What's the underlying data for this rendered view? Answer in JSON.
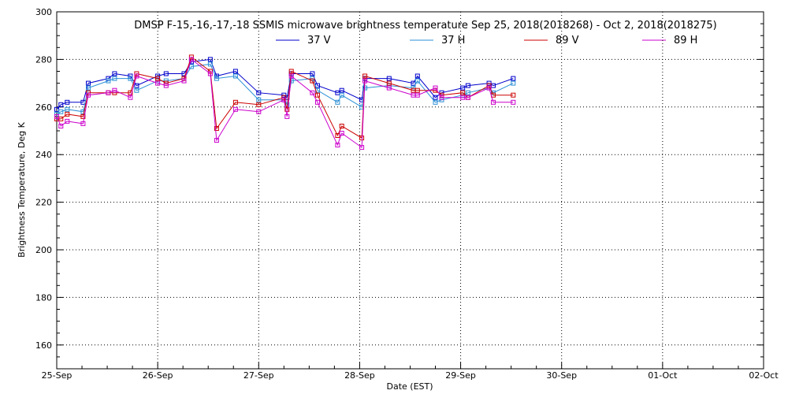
{
  "chart_data": {
    "type": "line",
    "title": "DMSP F-15,-16,-17,-18 SSMIS microwave brightness temperature Sep 25, 2018(2018268) - Oct  2, 2018(2018275)",
    "xlabel": "Date (EST)",
    "ylabel": "Brightness Temperature, Deg K",
    "x_ticks": [
      "25-Sep",
      "26-Sep",
      "27-Sep",
      "28-Sep",
      "29-Sep",
      "30-Sep",
      "01-Oct",
      "02-Oct"
    ],
    "x_tick_dates": [
      "2018-09-25",
      "2018-09-26",
      "2018-09-27",
      "2018-09-28",
      "2018-09-29",
      "2018-09-30",
      "2018-10-01",
      "2018-10-02"
    ],
    "xlim": [
      "2018-09-25 00:00",
      "2018-10-02 00:00"
    ],
    "ylim": [
      150,
      300
    ],
    "y_ticks": [
      160,
      180,
      200,
      220,
      240,
      260,
      280,
      300
    ],
    "grid": true,
    "legend_position": "top-center",
    "x": [
      "2018-09-25 00:00",
      "2018-09-25 01:00",
      "2018-09-25 02:30",
      "2018-09-25 06:15",
      "2018-09-25 07:30",
      "2018-09-25 12:15",
      "2018-09-25 13:45",
      "2018-09-25 17:30",
      "2018-09-25 19:00",
      "2018-09-26 00:00",
      "2018-09-26 02:00",
      "2018-09-26 06:15",
      "2018-09-26 08:00",
      "2018-09-26 12:30",
      "2018-09-26 14:00",
      "2018-09-26 18:30",
      "2018-09-27 00:00",
      "2018-09-27 06:00",
      "2018-09-27 06:45",
      "2018-09-27 07:45",
      "2018-09-27 12:45",
      "2018-09-27 14:00",
      "2018-09-27 18:45",
      "2018-09-27 19:45",
      "2018-09-28 00:30",
      "2018-09-28 01:15",
      "2018-09-28 07:00",
      "2018-09-28 12:45",
      "2018-09-28 13:45",
      "2018-09-28 18:00",
      "2018-09-28 19:30",
      "2018-09-29 00:30",
      "2018-09-29 01:45",
      "2018-09-29 06:45",
      "2018-09-29 07:45",
      "2018-09-29 12:30",
      "2018-09-29 14:15",
      "2018-09-29 19:00"
    ],
    "series": [
      {
        "name": "37 V",
        "color": "#0000cc",
        "values": [
          259,
          261,
          262,
          262,
          270,
          272,
          274,
          273,
          269,
          273,
          274,
          274,
          279,
          280,
          273,
          275,
          266,
          265,
          264,
          274,
          274,
          269,
          266,
          267,
          263,
          272,
          272,
          270,
          273,
          264,
          266,
          268,
          269,
          270,
          269,
          272,
          null,
          null
        ]
      },
      {
        "name": "37 H",
        "color": "#2b8fd6",
        "values": [
          257,
          258,
          259,
          258,
          268,
          271,
          272,
          272,
          267,
          271,
          271,
          272,
          277,
          278,
          272,
          273,
          263,
          263,
          261,
          271,
          272,
          267,
          262,
          265,
          260,
          268,
          269,
          268,
          271,
          262,
          263,
          265,
          266,
          268,
          266,
          270,
          null,
          null
        ]
      },
      {
        "name": "89 V",
        "color": "#cc0000",
        "values": [
          255,
          255,
          257,
          256,
          266,
          266,
          266,
          266,
          274,
          272,
          270,
          272,
          281,
          275,
          251,
          262,
          261,
          264,
          259,
          275,
          271,
          265,
          248,
          252,
          247,
          273,
          270,
          267,
          267,
          267,
          265,
          266,
          264,
          269,
          265,
          265,
          null,
          null
        ]
      },
      {
        "name": "89 H",
        "color": "#cc00cc",
        "values": [
          256,
          252,
          254,
          253,
          265,
          266,
          267,
          264,
          273,
          270,
          269,
          271,
          280,
          274,
          246,
          259,
          258,
          263,
          256,
          273,
          266,
          262,
          244,
          249,
          243,
          271,
          268,
          265,
          265,
          268,
          264,
          264,
          264,
          268,
          262,
          262,
          null,
          null
        ]
      }
    ]
  }
}
